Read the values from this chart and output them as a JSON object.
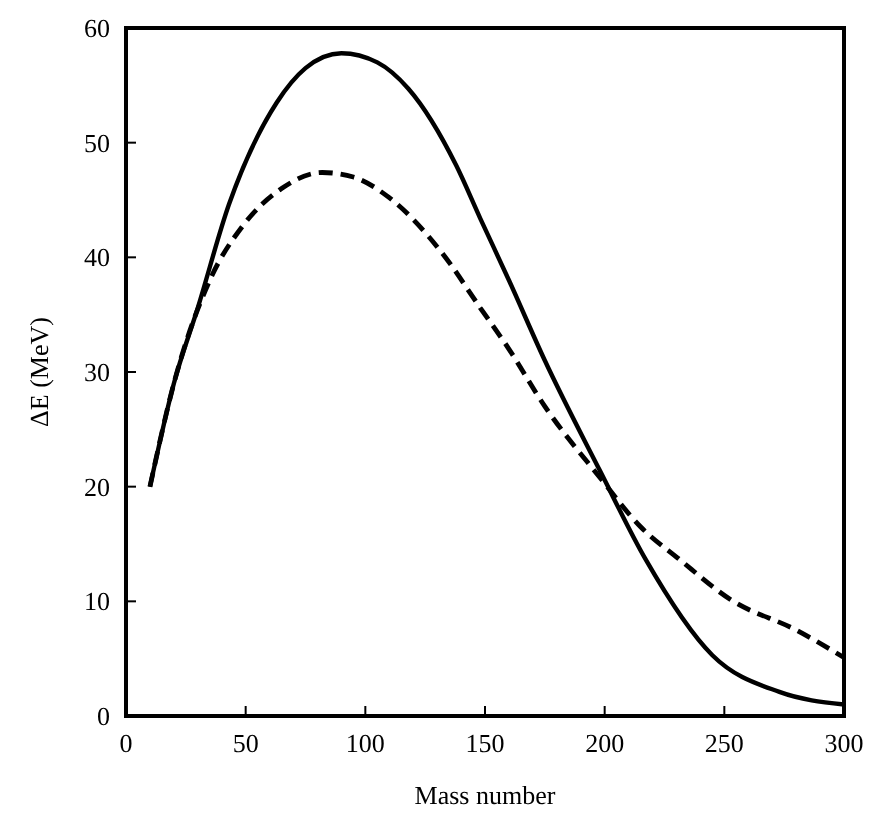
{
  "chart_data": {
    "type": "line",
    "xlabel": "Mass number",
    "ylabel": "ΔE (MeV)",
    "xlim": [
      0,
      300
    ],
    "ylim": [
      0,
      60
    ],
    "xticks": [
      0,
      50,
      100,
      150,
      200,
      250,
      300
    ],
    "yticks": [
      0,
      10,
      20,
      30,
      40,
      50,
      60
    ],
    "marker": "none",
    "series": [
      {
        "color": "#000000",
        "line_style": "solid",
        "x": [
          10,
          20,
          30,
          43,
          63,
          75,
          90,
          105,
          118,
          138,
          148,
          160,
          175,
          198,
          217,
          245,
          273,
          300
        ],
        "values": [
          20,
          29,
          35.6,
          44.6,
          53.5,
          56.5,
          57.8,
          57,
          54.7,
          48,
          43.4,
          38,
          31,
          21.4,
          13.7,
          5.3,
          2.1,
          1
        ]
      },
      {
        "color": "#000000",
        "line_style": "dashed",
        "x": [
          10,
          20,
          35,
          49,
          65,
          82,
          95,
          110,
          132,
          148,
          160,
          175,
          198,
          215,
          231,
          253,
          280,
          300
        ],
        "values": [
          20,
          29,
          38,
          42.8,
          46,
          47.4,
          47,
          45.2,
          40.4,
          35.6,
          32,
          27,
          20.8,
          16.5,
          13.7,
          10.1,
          7.5,
          5.1
        ]
      }
    ]
  }
}
